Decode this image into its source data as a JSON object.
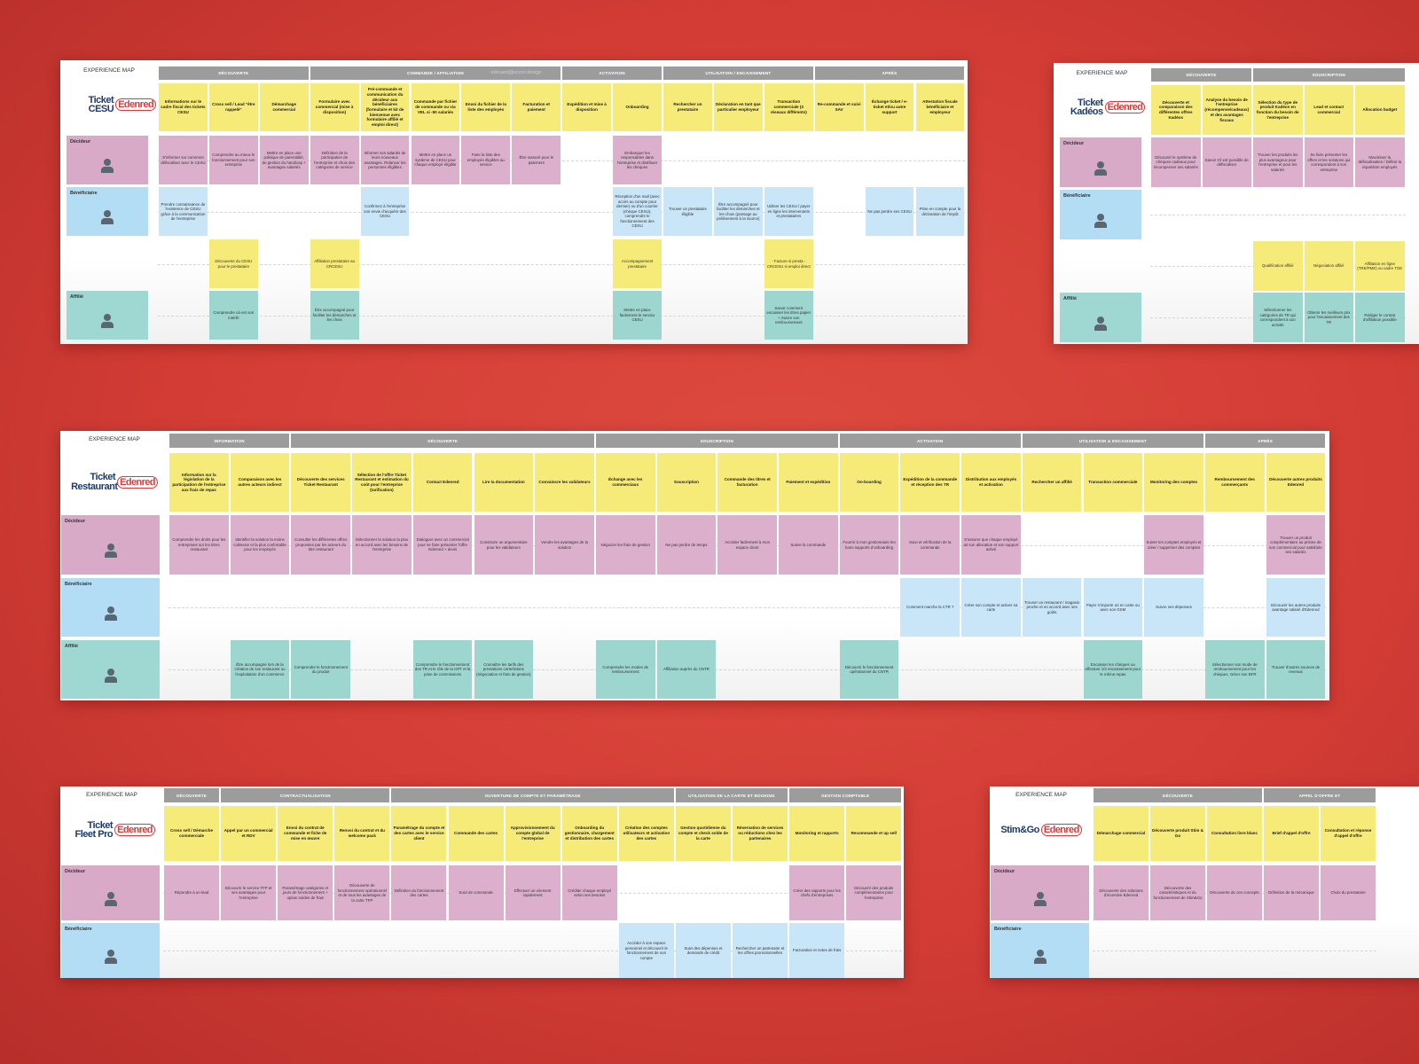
{
  "boards": [
    {
      "heading": "EXPERIENCE MAP",
      "logo": {
        "brand": "Ticket CESU",
        "company": "Edenred"
      },
      "watermark": "edouard@score.design",
      "phases": [
        {
          "label": "DÉCOUVERTE",
          "steps": [
            "Informations sur le cadre fiscal des tickets CESU",
            "Cross sell / Lead \"être rappelé\"",
            "Démarchage commercial"
          ]
        },
        {
          "label": "COMMANDE / AFFILIATION",
          "steps": [
            "Formulaire avec commercial (mise à disposition)",
            "Pré-commande et communication du décideur aux bénéficiaires (formulaire et kit de bienvenue avec formulaire affilié et emploi direct)",
            "Commande par fichier de commande ou via VEL si -50 salariés",
            "Envoi du fichier de la liste des employés",
            "Facturation et paiement"
          ]
        },
        {
          "label": "ACTIVATION",
          "steps": [
            "Expédition et mise à disposition",
            "Onboarding"
          ]
        },
        {
          "label": "UTILISATION / ENCAISSEMENT",
          "steps": [
            "Rechercher un prestataire",
            "Déclaration en tant que particulier employeur",
            "Transaction commerciale (3 réseaux différents)"
          ]
        },
        {
          "label": "APRÈS",
          "steps": [
            "Re-commande et suivi SAV",
            "Échange ticket / e-ticket et/ou autre support",
            "Attestation fiscale bénéficiaire et employeur"
          ]
        }
      ],
      "lanes": [
        {
          "label": "Décideur",
          "color": "#d9a9c8",
          "card_color": "#dcb0cc",
          "cells": [
            "S'informer sur comment défiscaliser avec le CESU",
            "Comprendre au mieux le fonctionnement pour son entreprise",
            "Mettre en place une politique de parentalité, de gestion du handicap + avantages salariés",
            "Définition de la participation de l'entreprise et choix des catégories de service",
            "Informer ses salariés de leurs nouveaux avantages. Relancer les personnes éligibles",
            "Mettre en place un système de CESU pour chaque employé éligible",
            "Faire la liste des employés éligibles au service",
            "Être rassuré pour le paiement",
            null,
            "Embarquer les responsables dans l'entreprise et distribuer les chèques",
            null,
            null,
            null,
            null,
            null,
            null
          ]
        },
        {
          "label": "Bénéficiaire",
          "color": "#b3dcf5",
          "card_color": "#c9e6f8",
          "cells": [
            "Prendre connaissance de l'existence de CESU grâce à la communication de l'entreprise",
            null,
            null,
            null,
            "Confirmez à l'entreprise son envie d'acquérir des CESU",
            null,
            null,
            null,
            null,
            "Réception d'un mail (avec accès au compte pour dernier) ou d'un courrier (chèque CESU), comprendre le fonctionnement des CESU",
            "Trouver un prestataire éligible",
            "Être accompagné pour faciliter les démarches et les choix (passage au prélèvement à la source)",
            "Utiliser les CESU / payer en ligne les intervenants et prestataires",
            null,
            "Ne pas perdre ses CESU",
            "Prise en compte pour la déclaration de l'impôt"
          ]
        },
        {
          "label": null,
          "color": "#ffffff",
          "card_color": "#f6eb78",
          "cells": [
            null,
            "Découverte du CESU pour le prestataire",
            null,
            "Affiliation prestataire au CRCESU",
            null,
            null,
            null,
            null,
            null,
            "Accompagnement prestataire",
            null,
            null,
            "- Facture si presta - CRCESU si emploi direct",
            null,
            null,
            null
          ]
        },
        {
          "label": "Affilié",
          "color": "#9fd8d2",
          "card_color": "#9dd6cf",
          "cells": [
            null,
            "Comprendre où est son intérêt",
            null,
            "Être accompagné pour faciliter les démarches et les choix",
            null,
            null,
            null,
            null,
            null,
            "Mettre en place facilement le service CESU",
            null,
            null,
            "Savoir comment encaisser les titres papier + Suivre son remboursement",
            null,
            null,
            null
          ]
        }
      ]
    },
    {
      "heading": "EXPERIENCE MAP",
      "logo": {
        "brand": "Ticket Kadéos",
        "company": "Edenred"
      },
      "phases": [
        {
          "label": "DÉCOUVERTE",
          "steps": [
            "Découverte et comparaison des différentes offres Kadéos",
            "Analyse du besoin de l'entreprise (récompense/cadeaux) et des avantages fiscaux"
          ]
        },
        {
          "label": "SOUSCRIPTION",
          "steps": [
            "Sélection du type de produit Kadéos en fonction du besoin de l'entreprise",
            "Lead et contact commercial",
            "Allocation budget"
          ]
        }
      ],
      "lanes": [
        {
          "label": "Décideur",
          "color": "#d9a9c8",
          "card_color": "#dcb0cc",
          "cells": [
            "Découvrir le système de chèques cadeaux pour récompenser ses salariés",
            "Savoir s'il est possible de défiscaliser",
            "Trouver les produits les plus avantageux pour l'entreprise et pour les salariés",
            "Se faire présenter les offres et les solutions qui correspondent à son entreprise",
            "Maximiser la défiscalisation / Définir la répartition employés"
          ]
        },
        {
          "label": "Bénéficiaire",
          "color": "#b3dcf5",
          "card_color": "#c9e6f8",
          "cells": [
            null,
            null,
            null,
            null,
            null
          ]
        },
        {
          "label": null,
          "color": "#ffffff",
          "card_color": "#f6eb78",
          "cells": [
            null,
            null,
            "Qualification affilié",
            "Négociation affilié",
            "Affiliation en ligne (TRE/PME) ou cadre TGE"
          ]
        },
        {
          "label": "Affilié",
          "color": "#9fd8d2",
          "card_color": "#9dd6cf",
          "cells": [
            null,
            null,
            "Sélectionner les catégories de TR qui correspondent à son activité",
            "Obtenir les meilleurs prix pour l'encaissement des TR",
            "Rédiger le contrat d'affiliation possible"
          ]
        }
      ]
    },
    {
      "heading": "EXPERIENCE MAP",
      "logo": {
        "brand": "Ticket Restaurant",
        "company": "Edenred"
      },
      "phases": [
        {
          "label": "INFORMATION",
          "steps": [
            "Information sur la législation de la participation de l'entreprise aux frais de repas",
            "Comparaison avec les autres acteurs indirect"
          ]
        },
        {
          "label": "DÉCOUVERTE",
          "steps": [
            "Découverte des services Ticket Restaurant",
            "Sélection de l'offre Ticket Restaurant et estimation du coût pour l'entreprise (tarification)",
            "Contact Edenred",
            "Lire la documentation",
            "Convaincre les validateurs"
          ]
        },
        {
          "label": "SOUSCRIPTION",
          "steps": [
            "Échange avec les commerciaux",
            "Souscription",
            "Commande des titres et facturation",
            "Paiement et expédition"
          ]
        },
        {
          "label": "ACTIVATION",
          "steps": [
            "On-boarding",
            "Expédition de la commande et réception des TR",
            "Distribution aux employés et activation"
          ]
        },
        {
          "label": "UTILISATION & ENCAISSEMENT",
          "steps": [
            "Rechercher un affilié",
            "Transaction commerciale",
            "Monitoring des comptes"
          ]
        },
        {
          "label": "APRÈS",
          "steps": [
            "Remboursement des commerçants",
            "Découverte autres produits Edenred"
          ]
        }
      ],
      "lanes": [
        {
          "label": "Décideur",
          "color": "#d9a9c8",
          "card_color": "#dcb0cc",
          "cells": [
            "Comprendre les droits pour les entreprises sur les titres restaurant",
            "Identifier la solution la moins coûteuse et la plus confortable pour les employés",
            "Consulter les différentes offres proposées par les acteurs du titre restaurant",
            "Sélectionner la solution la plus en accord avec les besoins de l'entreprise",
            "Dialoguer avec un commercial pour se faire présenter l'offre Edenred + devis",
            "Construire un argumentaire pour les validateurs",
            "Vendre les avantages de la solution",
            "Négocier les frais de gestion",
            "Ne pas perdre de temps",
            "Accéder facilement à mon espace client",
            "Suivre la commande",
            "Fournir à mon gestionnaire les bons supports d'onboarding",
            "Suivi et vérification de la commande",
            "S'assurer que chaque employé ait son allocation et son support activé",
            null,
            null,
            "Suivre les comptes employés et créer / supprimer des comptes",
            null,
            "Trouver un produit complémentaire au prisme de son commercial pour satisfaire ses salariés"
          ]
        },
        {
          "label": "Bénéficiaire",
          "color": "#b3dcf5",
          "card_color": "#c9e6f8",
          "cells": [
            null,
            null,
            null,
            null,
            null,
            null,
            null,
            null,
            null,
            null,
            null,
            null,
            "Comment marche la CTR ?",
            "Créer son compte et activer sa carte",
            "Trouver un restaurant / magasin proche et en accord avec ses goûts",
            "Payer n'importe où en carte ou avec son GSM",
            "Suivre ses dépenses",
            null,
            "Découvrir les autres produits avantage salarié d'Edenred"
          ]
        },
        {
          "label": "Affilié",
          "color": "#9fd8d2",
          "card_color": "#9dd6cf",
          "cells": [
            null,
            "Être accompagné lors de la création de son restaurant ou l'exploitation d'un commerce",
            "Comprendre le fonctionnement du produit",
            null,
            "Comprendre le fonctionnement des TR et le rôle de la CRT et la prise de commissions",
            "Connaître les tarifs des prestations carte/tickets (négociation et frais de gestion)",
            null,
            "Comprendre les modes de remboursement",
            "Affiliation auprès du CNTR",
            null,
            null,
            "Découvrir le fonctionnement opérationnel du CNTR",
            null,
            null,
            null,
            "Encaisser les chèques ou effectuer 1/2 encaissement pour le même repas",
            null,
            "Sélectionner son mode de remboursement pour les chèques. Gérer son BFR",
            "Trouver d'autres sources de revenus"
          ]
        }
      ]
    },
    {
      "heading": "EXPERIENCE MAP",
      "logo": {
        "brand": "Ticket Fleet Pro",
        "company": "Edenred"
      },
      "phases": [
        {
          "label": "DÉCOUVERTE",
          "steps": [
            "Cross sell / Démarche commerciale"
          ]
        },
        {
          "label": "CONTRACTUALISATION",
          "steps": [
            "Appel par un commercial et RDV",
            "Envoi du contrat de commande et fiche de mise en œuvre",
            "Renvoi du contrat et du welcome pack"
          ]
        },
        {
          "label": "OUVERTURE DE COMPTE ET PARAMÉTRAGE",
          "steps": [
            "Paramétrage du compte et des cartes avec le service client",
            "Commande des cartes",
            "Approvisionnement du compte global de l'entreprise",
            "Onboarding du gestionnaire, chargement et distribution des cartes",
            "Création des comptes utilisateurs et activation des cartes"
          ]
        },
        {
          "label": "UTILISATION DE LA CARTE ET BOOKING",
          "steps": [
            "Gestion quotidienne du compte et check solde de la carte",
            "Réservation de services ou réductions chez les partenaires"
          ]
        },
        {
          "label": "GESTION COMPTABLE",
          "steps": [
            "Monitoring et rapports",
            "Recommande et up sell"
          ]
        }
      ],
      "lanes": [
        {
          "label": "Décideur",
          "color": "#d9a9c8",
          "card_color": "#dcb0cc",
          "cells": [
            "Répondre à un lead",
            "Découvrir le service TFP et ses avantages pour l'entreprise",
            "Paramétrage catégories et jours de fonctionnement + option soldes de frais",
            "Découverte de fonctionnement opérationnel et de tous les avantages de la carte TFP",
            "Définition du fonctionnement des cartes",
            "Suivi de commande",
            "Effectuer un virement rapidement",
            "Créditer chaque employé selon ses besoins",
            null,
            null,
            null,
            "Créer des rapports pour les chefs d'entreprises",
            "Découvrir des produits complémentaires pour l'entreprise"
          ]
        },
        {
          "label": "Bénéficiaire",
          "color": "#b3dcf5",
          "card_color": "#c9e6f8",
          "cells": [
            null,
            null,
            null,
            null,
            null,
            null,
            null,
            null,
            "Accéder à son espace personnel et découvrir le fonctionnement de son compte",
            "Suivi des dépenses et demande de crédit",
            "Rechercher un partenaire et les offres promotionnelles",
            "Facturation et notes de frais",
            null
          ]
        }
      ]
    },
    {
      "heading": "EXPERIENCE MAP",
      "logo": {
        "brand": "Stim&Go",
        "company": "Edenred"
      },
      "phases": [
        {
          "label": "DÉCOUVERTE",
          "steps": [
            "Démarchage commercial",
            "Découverte produit Stim & Go",
            "Consultation livre blanc"
          ]
        },
        {
          "label": "APPEL D'OFFRE ET",
          "steps": [
            "Brief d'appel d'offre",
            "Consultation et réponse d'appel d'offre"
          ]
        }
      ],
      "lanes": [
        {
          "label": "Décideur",
          "color": "#d9a9c8",
          "card_color": "#dcb0cc",
          "cells": [
            "Découverte des solutions d'incentive Edenred",
            "Découverte des caractéristiques et du fonctionnement de Stim&Go",
            "Découverte de ces concepts",
            "Définition de la mécanique",
            "Choix du prestataire"
          ]
        },
        {
          "label": "Bénéficiaire",
          "color": "#b3dcf5",
          "card_color": "#c9e6f8",
          "cells": [
            null,
            null,
            null,
            null,
            null
          ]
        }
      ]
    }
  ]
}
